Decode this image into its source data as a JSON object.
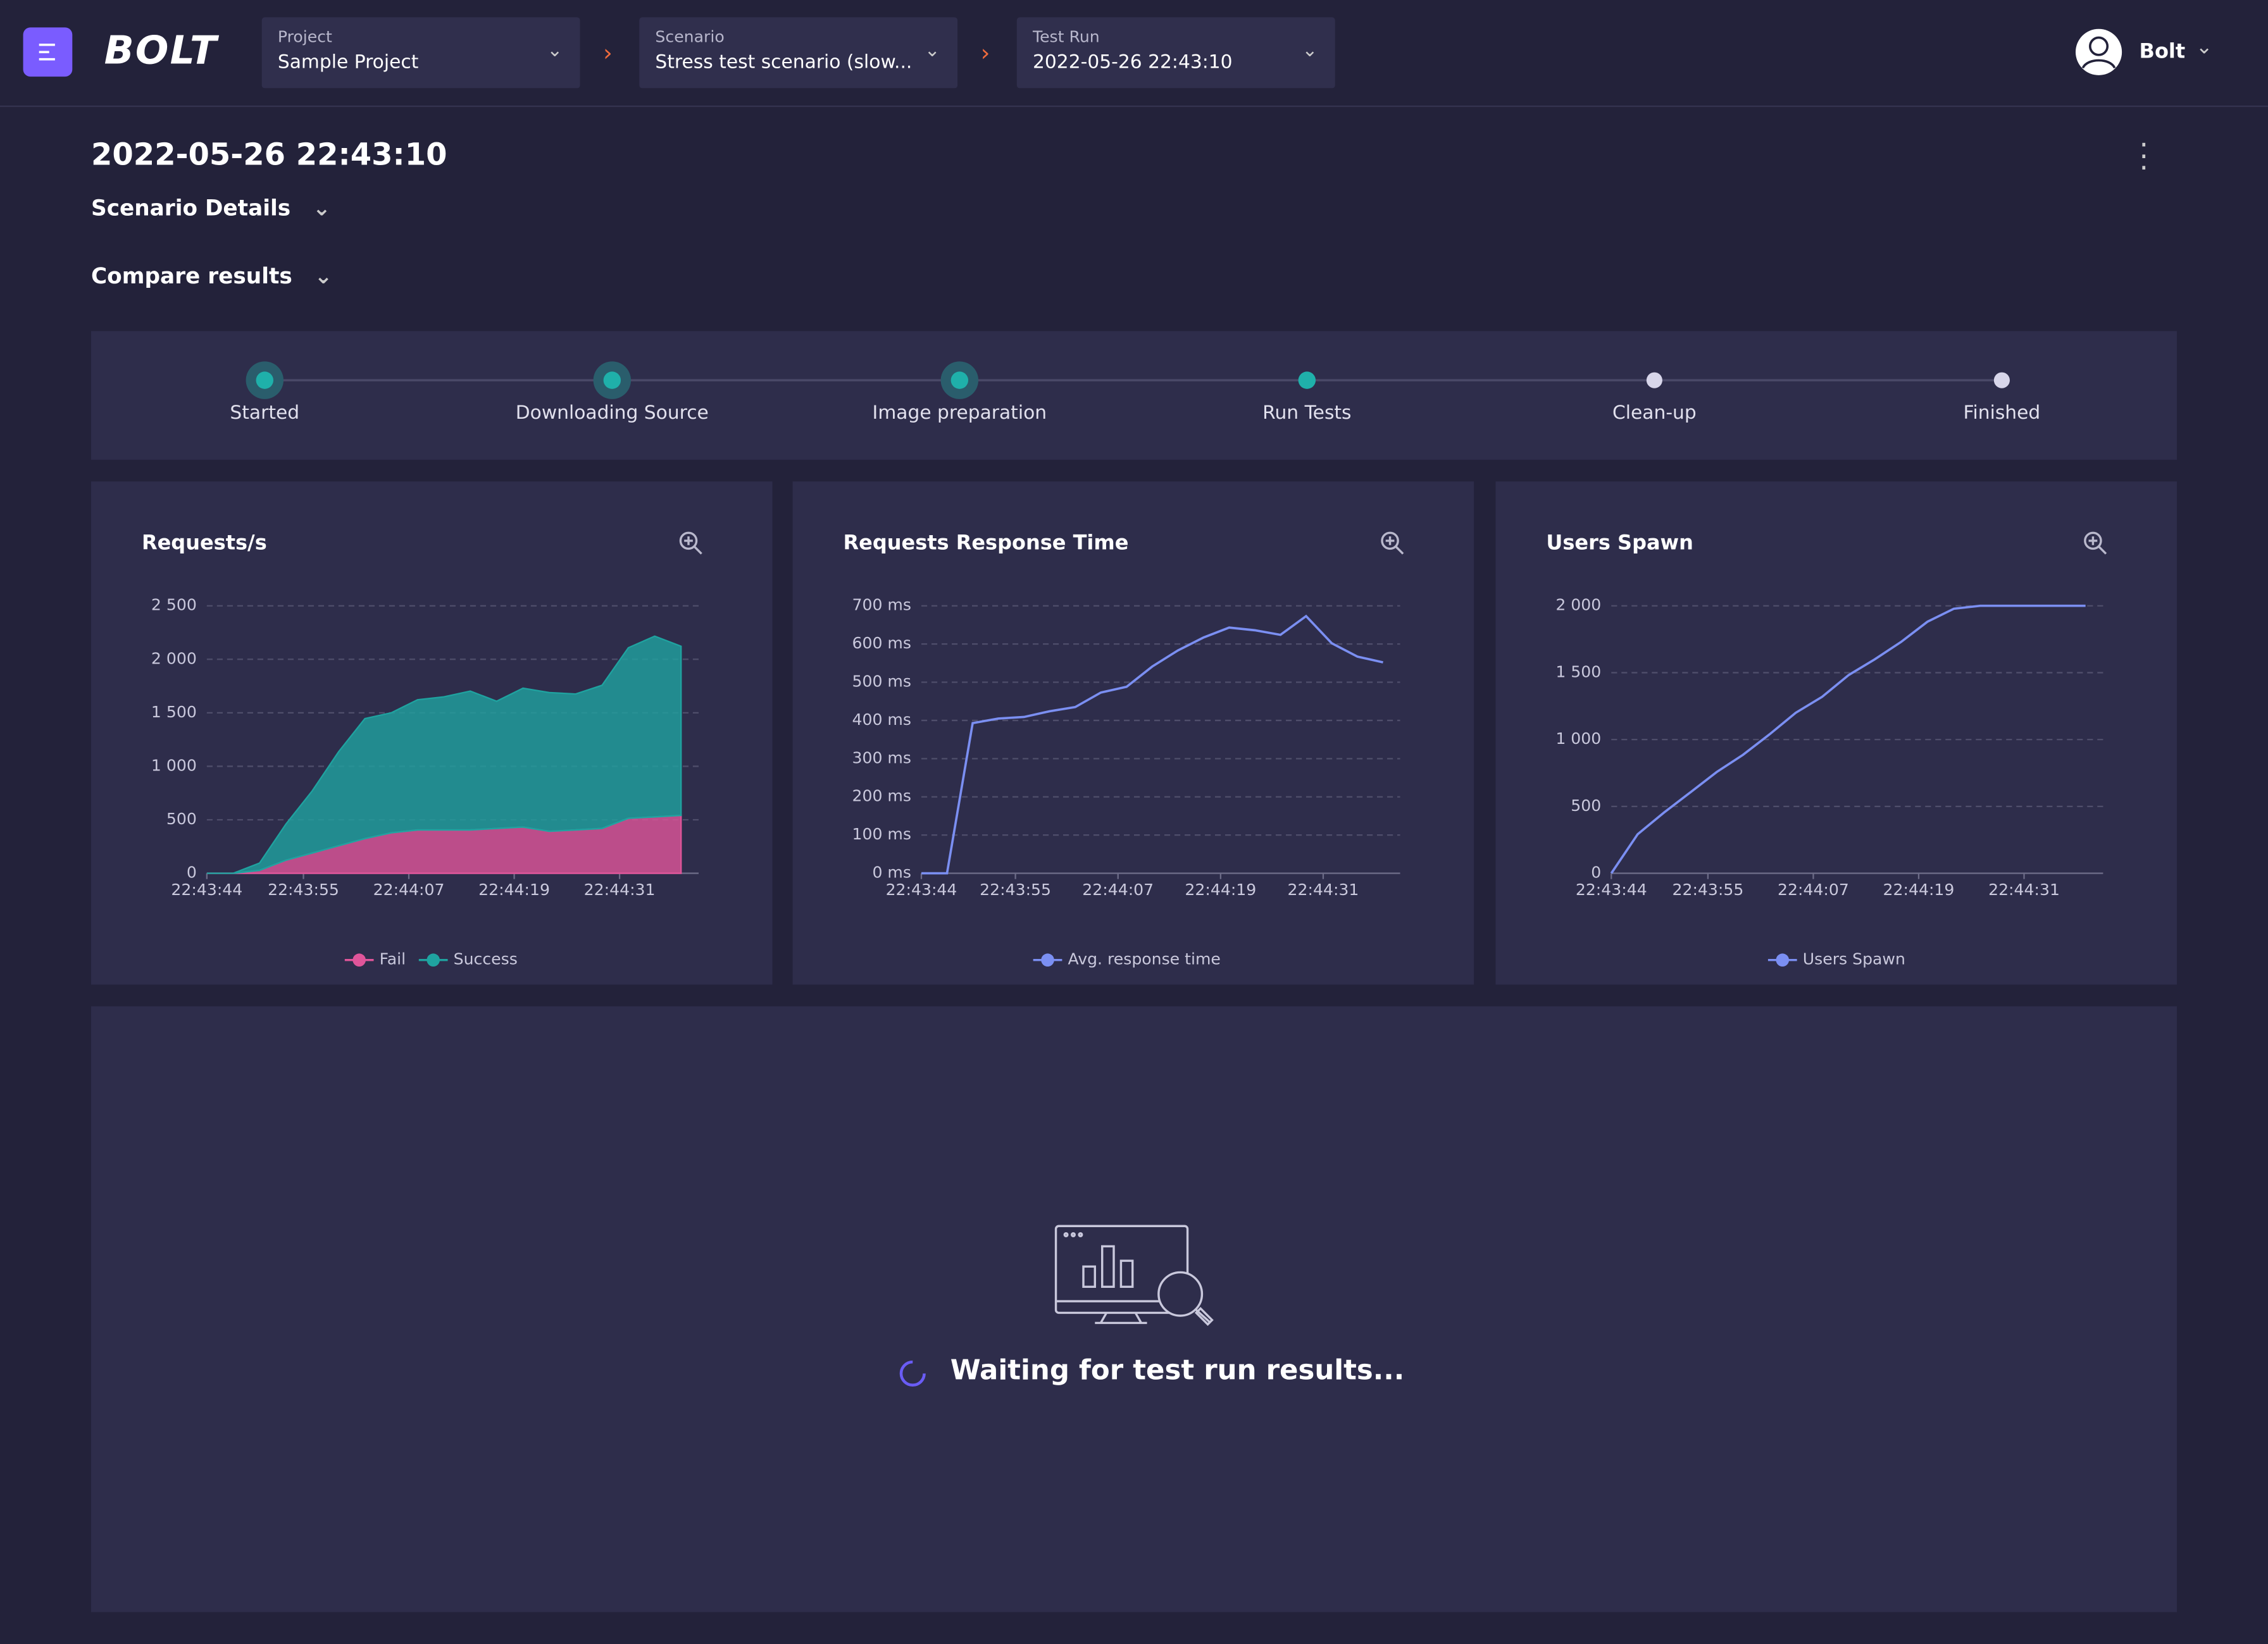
{
  "header": {
    "logo": "BOLT",
    "project_label": "Project",
    "project": "Sample Project",
    "scenario_label": "Scenario",
    "scenario": "Stress test scenario (slow...",
    "testrun_label": "Test Run",
    "testrun": "2022-05-26 22:43:10",
    "user": "Bolt"
  },
  "page": {
    "title": "2022-05-26 22:43:10",
    "scenario_details": "Scenario Details",
    "compare_results": "Compare results",
    "waiting": "Waiting for test run results..."
  },
  "steps": [
    {
      "label": "Started",
      "state": "done"
    },
    {
      "label": "Downloading Source",
      "state": "done"
    },
    {
      "label": "Image preparation",
      "state": "done"
    },
    {
      "label": "Run Tests",
      "state": "active"
    },
    {
      "label": "Clean-up",
      "state": "pending"
    },
    {
      "label": "Finished",
      "state": "pending"
    }
  ],
  "chart_data": [
    {
      "type": "stacked-area",
      "title": "Requests/s",
      "x": [
        "22:43:44",
        "22:43:47",
        "22:43:50",
        "22:43:53",
        "22:43:56",
        "22:43:59",
        "22:44:02",
        "22:44:05",
        "22:44:08",
        "22:44:11",
        "22:44:14",
        "22:44:17",
        "22:44:20",
        "22:44:23",
        "22:44:26",
        "22:44:29",
        "22:44:32",
        "22:44:35",
        "22:44:38"
      ],
      "series": [
        {
          "name": "Fail",
          "color": "#e0559a",
          "values": [
            0,
            0,
            27,
            122,
            189,
            257,
            324,
            378,
            405,
            405,
            405,
            419,
            432,
            392,
            405,
            419,
            514,
            527,
            541
          ]
        },
        {
          "name": "Success",
          "color": "#1fa3a0",
          "values": [
            0,
            0,
            68,
            337,
            581,
            878,
            1122,
            1122,
            1217,
            1244,
            1298,
            1189,
            1298,
            1297,
            1271,
            1338,
            1594,
            1689,
            1581
          ]
        }
      ],
      "xlim": [
        "22:43:44",
        "22:44:40"
      ],
      "xticks": [
        "22:43:44",
        "22:43:55",
        "22:44:07",
        "22:44:19",
        "22:44:31"
      ],
      "ylim": [
        0,
        2500
      ],
      "yticks": [
        0,
        500,
        {
          "value": 1000,
          "label": "1 000"
        },
        {
          "value": 1500,
          "label": "1 500"
        },
        {
          "value": 2000,
          "label": "2 000"
        },
        {
          "value": 2500,
          "label": "2 500"
        }
      ],
      "grid": true
    },
    {
      "type": "line",
      "title": "Requests Response Time",
      "x": [
        "22:43:44",
        "22:43:47",
        "22:43:50",
        "22:43:53",
        "22:43:56",
        "22:43:59",
        "22:44:02",
        "22:44:05",
        "22:44:08",
        "22:44:11",
        "22:44:14",
        "22:44:17",
        "22:44:20",
        "22:44:23",
        "22:44:26",
        "22:44:29",
        "22:44:32",
        "22:44:35",
        "22:44:38"
      ],
      "series": [
        {
          "name": "Avg. response time",
          "color": "#7b8ff2",
          "values": [
            0,
            0,
            393,
            405,
            409,
            424,
            435,
            473,
            488,
            541,
            583,
            617,
            643,
            636,
            624,
            673,
            602,
            567,
            552
          ]
        }
      ],
      "xlim": [
        "22:43:44",
        "22:44:40"
      ],
      "xticks": [
        "22:43:44",
        "22:43:55",
        "22:44:07",
        "22:44:19",
        "22:44:31"
      ],
      "ylim": [
        0,
        700
      ],
      "yticks": [
        {
          "value": 0,
          "label": "0 ms"
        },
        {
          "value": 100,
          "label": "100 ms"
        },
        {
          "value": 200,
          "label": "200 ms"
        },
        {
          "value": 300,
          "label": "300 ms"
        },
        {
          "value": 400,
          "label": "400 ms"
        },
        {
          "value": 500,
          "label": "500 ms"
        },
        {
          "value": 600,
          "label": "600 ms"
        },
        {
          "value": 700,
          "label": "700 ms"
        }
      ],
      "grid": true
    },
    {
      "type": "line",
      "title": "Users Spawn",
      "x": [
        "22:43:44",
        "22:43:47",
        "22:43:50",
        "22:43:53",
        "22:43:56",
        "22:43:59",
        "22:44:02",
        "22:44:05",
        "22:44:08",
        "22:44:11",
        "22:44:14",
        "22:44:17",
        "22:44:20",
        "22:44:23",
        "22:44:26",
        "22:44:29",
        "22:44:32",
        "22:44:35",
        "22:44:38"
      ],
      "series": [
        {
          "name": "Users Spawn",
          "color": "#7b8ff2",
          "values": [
            0,
            292,
            454,
            605,
            757,
            886,
            1038,
            1200,
            1319,
            1481,
            1600,
            1730,
            1881,
            1978,
            2000,
            2000,
            2000,
            2000,
            2000
          ]
        }
      ],
      "xlim": [
        "22:43:44",
        "22:44:40"
      ],
      "xticks": [
        "22:43:44",
        "22:43:55",
        "22:44:07",
        "22:44:19",
        "22:44:31"
      ],
      "ylim": [
        0,
        2000
      ],
      "yticks": [
        0,
        500,
        {
          "value": 1000,
          "label": "1 000"
        },
        {
          "value": 1500,
          "label": "1 500"
        },
        {
          "value": 2000,
          "label": "2 000"
        }
      ],
      "grid": true
    }
  ]
}
